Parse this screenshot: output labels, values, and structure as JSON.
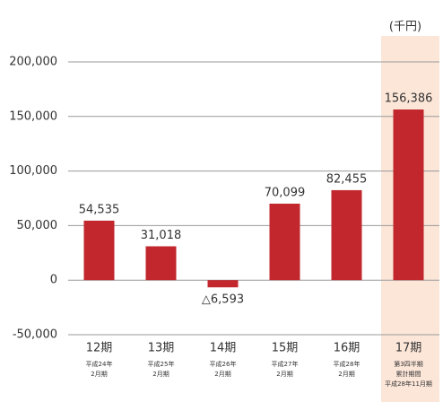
{
  "chart_data": {
    "type": "bar",
    "unit_label": "(千円)",
    "categories": [
      "12期",
      "13期",
      "14期",
      "15期",
      "16期",
      "17期"
    ],
    "category_notes": [
      [
        "平成24年",
        "2月期"
      ],
      [
        "平成25年",
        "2月期"
      ],
      [
        "平成26年",
        "2月期"
      ],
      [
        "平成27年",
        "2月期"
      ],
      [
        "平成28年",
        "2月期"
      ],
      [
        "第3四半期",
        "累計期間",
        "平成28年11月期"
      ]
    ],
    "values": [
      54535,
      31018,
      -6593,
      70099,
      82455,
      156386
    ],
    "value_labels": [
      "54,535",
      "31,018",
      "△6,593",
      "70,099",
      "82,455",
      "156,386"
    ],
    "color": "#c1272d",
    "highlight": {
      "category": 5,
      "color": "#fce6d8"
    },
    "ylim": [
      -50000,
      200000
    ],
    "yticks": [
      {
        "value": -50000,
        "label": "-50,000"
      },
      0,
      {
        "value": 50000,
        "label": "50,000"
      },
      {
        "value": 100000,
        "label": "100,000"
      },
      {
        "value": 150000,
        "label": "150,000"
      },
      {
        "value": 200000,
        "label": "200,000"
      }
    ],
    "grid": true
  }
}
